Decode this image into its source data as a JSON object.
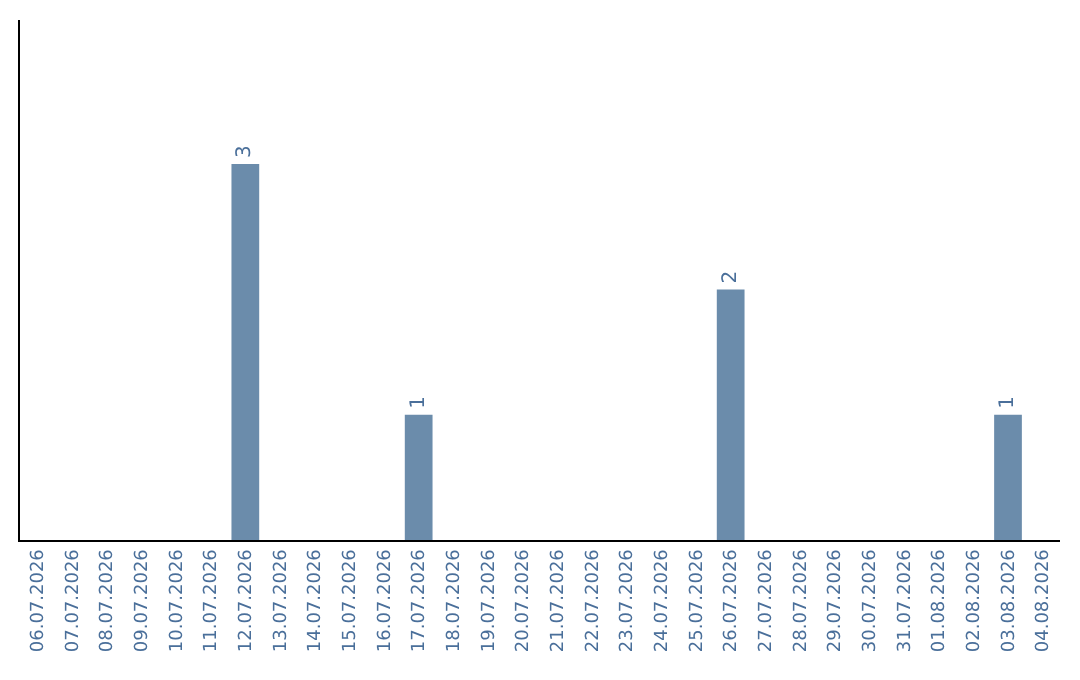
{
  "chart_data": {
    "type": "bar",
    "categories": [
      "06.07.2026",
      "07.07.2026",
      "08.07.2026",
      "09.07.2026",
      "10.07.2026",
      "11.07.2026",
      "12.07.2026",
      "13.07.2026",
      "14.07.2026",
      "15.07.2026",
      "16.07.2026",
      "17.07.2026",
      "18.07.2026",
      "19.07.2026",
      "20.07.2026",
      "21.07.2026",
      "22.07.2026",
      "23.07.2026",
      "24.07.2026",
      "25.07.2026",
      "26.07.2026",
      "27.07.2026",
      "28.07.2026",
      "29.07.2026",
      "30.07.2026",
      "31.07.2026",
      "01.08.2026",
      "02.08.2026",
      "03.08.2026",
      "04.08.2026"
    ],
    "values": [
      0,
      0,
      0,
      0,
      0,
      0,
      3,
      0,
      0,
      0,
      0,
      1,
      0,
      0,
      0,
      0,
      0,
      0,
      0,
      0,
      2,
      0,
      0,
      0,
      0,
      0,
      0,
      0,
      1,
      0
    ],
    "color": "#6b8cab",
    "ylim": [
      0,
      4.15
    ],
    "tick_labels": "x",
    "grid": false,
    "legend": false,
    "value_labels": [
      null,
      null,
      null,
      null,
      null,
      null,
      "3",
      null,
      null,
      null,
      null,
      "1",
      null,
      null,
      null,
      null,
      null,
      null,
      null,
      null,
      "2",
      null,
      null,
      null,
      null,
      null,
      null,
      null,
      "1",
      null
    ]
  }
}
